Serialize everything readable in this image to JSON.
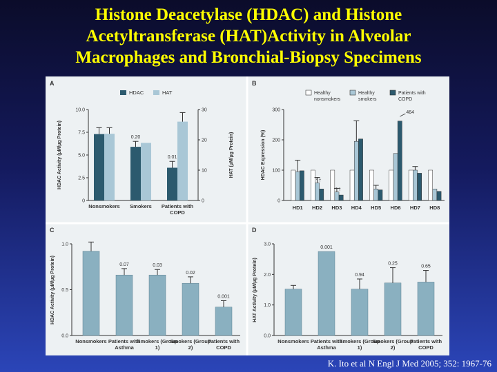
{
  "title": {
    "line1": "Histone Deacetylase  (HDAC)  and Histone",
    "line2": "Acetyltransferase (HAT)Activity in Alveolar",
    "line3": "Macrophages and Bronchial-Biopsy Specimens"
  },
  "citation": "K. Ito et al N Engl J Med 2005; 352: 1967-76",
  "colors": {
    "hdac": "#2c5a6e",
    "hat": "#a9c7d6",
    "healthy_nonsmokers": "#ffffff",
    "healthy_smokers": "#a9c7d6",
    "copd": "#2c5a6e",
    "single": "#8ab0c0",
    "panel_bg": "#edf1f3"
  },
  "chart_data": [
    {
      "panel": "A",
      "type": "bar",
      "categories": [
        "Nonsmokers",
        "Smokers",
        "Patients with COPD"
      ],
      "series": [
        {
          "name": "HDAC",
          "axis": "left",
          "values": [
            7.3,
            5.9,
            3.6
          ],
          "errors": [
            0.7,
            0.6,
            0.7
          ]
        },
        {
          "name": "HAT",
          "axis": "right",
          "values": [
            22,
            19,
            26
          ],
          "errors": [
            2,
            0,
            3
          ]
        }
      ],
      "annotations": [
        "",
        "0.20",
        "0.01"
      ],
      "ylabel": "HDAC Activity (µM/µg Protein)",
      "ylabel_right": "HAT (µM/µg Protein)",
      "ylim": [
        0,
        10
      ],
      "yticks": [
        "0",
        "2.5",
        "5.0",
        "7.5",
        "10.0"
      ],
      "ylim_right": [
        0,
        30
      ],
      "yticks_right": [
        "0",
        "10",
        "20",
        "30"
      ],
      "legend": "top-center"
    },
    {
      "panel": "B",
      "type": "bar",
      "categories": [
        "HD1",
        "HD2",
        "HD3",
        "HD4",
        "HD5",
        "HD6",
        "HD7",
        "HD8"
      ],
      "series": [
        {
          "name": "Healthy nonsmokers",
          "values": [
            100,
            100,
            100,
            100,
            100,
            100,
            100,
            100
          ],
          "errors": [
            0,
            0,
            0,
            0,
            0,
            0,
            0,
            0
          ]
        },
        {
          "name": "Healthy smokers",
          "values": [
            95,
            58,
            28,
            195,
            38,
            155,
            100,
            38
          ],
          "errors": [
            38,
            18,
            12,
            68,
            12,
            0,
            12,
            0
          ]
        },
        {
          "name": "Patients with COPD",
          "values": [
            98,
            38,
            18,
            203,
            35,
            262,
            90,
            30
          ],
          "errors": [
            0,
            0,
            0,
            0,
            0,
            0,
            0,
            0
          ]
        }
      ],
      "marks": [
        "",
        "*  †",
        "*  †",
        "",
        "",
        "",
        "",
        ""
      ],
      "annotation": "464",
      "ylabel": "HDAC Expression (%)",
      "ylim": [
        0,
        300
      ],
      "yticks": [
        "0",
        "100",
        "200",
        "300"
      ],
      "legend": "top"
    },
    {
      "panel": "C",
      "type": "bar",
      "categories": [
        "Nonsmokers",
        "Patients with Asthma",
        "Smokers (Group 1)",
        "Smokers (Group 2)",
        "Patients with COPD"
      ],
      "values": [
        0.92,
        0.66,
        0.66,
        0.57,
        0.31
      ],
      "errors": [
        0.1,
        0.07,
        0.06,
        0.07,
        0.07
      ],
      "annotations": [
        "",
        "0.07",
        "0.03",
        "0.02",
        "0.001"
      ],
      "ylabel": "HDAC Activity (µM/µg Protein)",
      "ylim": [
        0,
        1.0
      ],
      "yticks": [
        "0.0",
        "0.5",
        "1.0"
      ]
    },
    {
      "panel": "D",
      "type": "bar",
      "categories": [
        "Nonsmokers",
        "Patients with Asthma",
        "Smokers (Group 1)",
        "Smokers (Group 2)",
        "Patients with COPD"
      ],
      "values": [
        1.52,
        2.75,
        1.52,
        1.72,
        1.75
      ],
      "errors": [
        0.12,
        0.0,
        0.33,
        0.5,
        0.38
      ],
      "annotations": [
        "",
        "0.001",
        "0.94",
        "0.25",
        "0.65"
      ],
      "ylabel": "HAT Activity (µM/µg Protein)",
      "ylim": [
        0,
        3.0
      ],
      "yticks": [
        "0.0",
        "1.0",
        "2.0",
        "3.0"
      ]
    }
  ]
}
